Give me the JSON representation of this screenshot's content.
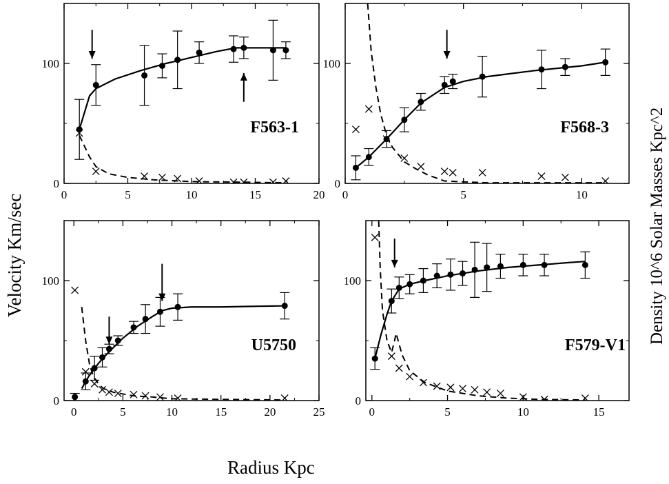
{
  "figure": {
    "y_axis_label": "Velocity Km/sec",
    "y2_axis_label": "Density 10^6 Solar Masses Kpc^2",
    "x_axis_label": "Radius Kpc"
  },
  "chart_data": [
    {
      "type": "scatter",
      "title": "F563-1",
      "xlabel": "Radius Kpc",
      "ylabel": "Velocity Km/sec",
      "xlim": [
        0,
        20
      ],
      "ylim": [
        0,
        150
      ],
      "xticks": [
        0,
        5,
        10,
        15,
        20
      ],
      "yticks": [
        0,
        100
      ],
      "observed": {
        "x": [
          1.2,
          2.5,
          6.3,
          7.7,
          8.9,
          10.6,
          13.3,
          14.1,
          16.4,
          17.4
        ],
        "y": [
          45,
          82,
          90,
          98,
          103,
          109,
          112,
          113,
          111,
          111
        ],
        "err": [
          25,
          17,
          25,
          10,
          24,
          9,
          11,
          9,
          25,
          7
        ]
      },
      "model_curve": {
        "x": [
          1.2,
          2.0,
          2.5,
          4,
          6,
          8,
          10,
          12,
          13.5,
          15,
          17.4
        ],
        "y": [
          45,
          73,
          79,
          87,
          94,
          100,
          105,
          110,
          113,
          113,
          113
        ]
      },
      "density_points": {
        "x": [
          1.2,
          2.5,
          6.3,
          7.7,
          8.9,
          10.6,
          13.3,
          14.1,
          16.4,
          17.4
        ],
        "y": [
          42,
          10,
          6,
          5,
          4,
          2,
          1,
          1,
          1,
          2
        ]
      },
      "density_curve": {
        "x": [
          1.2,
          2,
          2.5,
          3.5,
          5,
          7,
          10,
          14,
          17.4
        ],
        "y": [
          40,
          22,
          14,
          8,
          5,
          3,
          1.5,
          1,
          0.5
        ]
      },
      "arrows": [
        {
          "x": 2.2,
          "direction": "down",
          "from": 128,
          "to": 104
        },
        {
          "x": 14.1,
          "direction": "up",
          "from": 68,
          "to": 92
        }
      ]
    },
    {
      "type": "scatter",
      "title": "F568-3",
      "xlabel": "Radius Kpc",
      "ylabel": "Velocity Km/sec",
      "xlim": [
        0,
        12
      ],
      "ylim": [
        0,
        150
      ],
      "xticks": [
        0,
        5,
        10
      ],
      "yticks": [
        0,
        100
      ],
      "observed": {
        "x": [
          0.45,
          1.0,
          1.75,
          2.5,
          3.2,
          4.2,
          4.55,
          5.8,
          8.3,
          9.3,
          11.0
        ],
        "y": [
          13,
          22,
          37,
          53,
          68,
          82,
          85,
          89,
          95,
          97,
          101
        ],
        "err": [
          10,
          7,
          7,
          10,
          7,
          7,
          6,
          17,
          16,
          7,
          11
        ]
      },
      "model_curve": {
        "x": [
          0.45,
          1.0,
          1.75,
          2.5,
          3.2,
          4.2,
          5,
          6,
          8,
          10,
          11.0
        ],
        "y": [
          13,
          22,
          37,
          53,
          67,
          80,
          85,
          89,
          94,
          98,
          101
        ]
      },
      "density_points": {
        "x": [
          0.45,
          1.0,
          1.75,
          2.5,
          3.2,
          4.2,
          4.55,
          5.8,
          8.3,
          9.3,
          11.0
        ],
        "y": [
          45,
          62,
          37,
          21,
          14,
          10,
          9,
          9,
          6,
          5,
          2
        ]
      },
      "density_curve": {
        "x": [
          0.95,
          1.1,
          1.3,
          1.5,
          1.75,
          2.0,
          2.5,
          3.0,
          3.5,
          4.2,
          6,
          8,
          11
        ],
        "y": [
          150,
          110,
          80,
          58,
          40,
          30,
          18,
          12,
          7,
          2,
          0.5,
          0.5,
          0.5
        ]
      },
      "arrows": [
        {
          "x": 4.3,
          "direction": "down",
          "from": 128,
          "to": 104
        }
      ]
    },
    {
      "type": "scatter",
      "title": "U5750",
      "xlabel": "Radius Kpc",
      "ylabel": "Velocity Km/sec",
      "xlim": [
        -1,
        25
      ],
      "ylim": [
        0,
        150
      ],
      "xticks": [
        0,
        5,
        10,
        15,
        20,
        25
      ],
      "yticks": [
        0,
        100
      ],
      "observed": {
        "x": [
          0.1,
          1.2,
          2.1,
          2.9,
          3.6,
          4.5,
          6.1,
          7.3,
          8.8,
          10.6,
          21.5
        ],
        "y": [
          3,
          16,
          27,
          36,
          43,
          50,
          61,
          68,
          74,
          78,
          79
        ],
        "err": [
          3,
          7,
          10,
          8,
          4,
          4,
          5,
          12,
          12,
          11,
          11
        ]
      },
      "model_curve": {
        "x": [
          0.8,
          1.5,
          2.5,
          3.5,
          5,
          6.5,
          8,
          9,
          10,
          12,
          15,
          18,
          21.5
        ],
        "y": [
          10,
          20,
          31,
          40,
          52,
          62,
          70,
          75,
          77,
          78,
          78,
          78.5,
          79
        ]
      },
      "density_points": {
        "x": [
          0.1,
          1.2,
          2.1,
          2.9,
          3.6,
          4.5,
          6.1,
          7.3,
          8.8,
          10.6,
          21.5
        ],
        "y": [
          92,
          24,
          14,
          9,
          7,
          6,
          5,
          4,
          3,
          2,
          2
        ]
      },
      "density_curve": {
        "x": [
          0.8,
          1.2,
          1.6,
          2.0,
          2.5,
          3.0,
          4.0,
          6,
          8,
          10,
          15,
          21.5
        ],
        "y": [
          78,
          50,
          30,
          20,
          14,
          10,
          7,
          4,
          3,
          1.5,
          1,
          0.5
        ]
      },
      "arrows": [
        {
          "x": 3.6,
          "direction": "down",
          "from": 70,
          "to": 47
        },
        {
          "x": 9.0,
          "direction": "down",
          "from": 114,
          "to": 83
        }
      ]
    },
    {
      "type": "scatter",
      "title": "F579-V1",
      "xlabel": "Radius Kpc",
      "ylabel": "Velocity Km/sec",
      "xlim": [
        -0.4,
        17
      ],
      "ylim": [
        0,
        150
      ],
      "xticks": [
        0,
        5,
        10,
        15
      ],
      "yticks": [
        0,
        100
      ],
      "observed": {
        "x": [
          0.2,
          1.3,
          1.8,
          2.5,
          3.4,
          4.3,
          5.2,
          6.0,
          6.8,
          7.6,
          8.5,
          10.0,
          11.4,
          14.1
        ],
        "y": [
          35,
          83,
          94,
          97,
          100,
          104,
          105,
          106,
          109,
          111,
          112,
          113,
          113,
          113
        ],
        "err": [
          9,
          10,
          9,
          8,
          10,
          10,
          13,
          10,
          23,
          20,
          10,
          9,
          9,
          11
        ]
      },
      "model_curve": {
        "x": [
          0.2,
          0.6,
          1.0,
          1.3,
          1.8,
          2.5,
          3.5,
          5,
          7,
          9,
          11,
          13,
          14.1
        ],
        "y": [
          35,
          55,
          72,
          83,
          93,
          97,
          100,
          104,
          108,
          111,
          113,
          115,
          116
        ]
      },
      "density_points": {
        "x": [
          0.2,
          1.3,
          1.8,
          2.5,
          3.4,
          4.3,
          5.2,
          6.0,
          6.8,
          7.6,
          8.5,
          10.0,
          11.4,
          14.1
        ],
        "y": [
          136,
          37,
          27,
          20,
          15,
          12,
          11,
          10,
          9,
          7,
          6,
          3,
          1,
          2
        ]
      },
      "density_curve": {
        "x": [
          0.45,
          0.55,
          0.7,
          1.0,
          1.3,
          1.5,
          1.6,
          2.0,
          2.5,
          3.5,
          5,
          7,
          9,
          11,
          14.1
        ],
        "y": [
          150,
          110,
          75,
          50,
          40,
          50,
          56,
          38,
          25,
          15,
          8,
          4,
          2,
          1,
          0.5
        ]
      },
      "arrows": [
        {
          "x": 1.5,
          "direction": "down",
          "from": 135,
          "to": 111
        }
      ]
    }
  ]
}
